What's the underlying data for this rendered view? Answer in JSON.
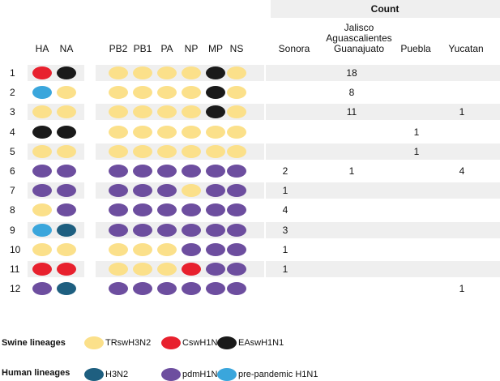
{
  "count_title": "Count",
  "segment_headers": [
    "HA",
    "NA",
    "PB2",
    "PB1",
    "PA",
    "NP",
    "MP",
    "NS"
  ],
  "region_headers": {
    "sonora": "Sonora",
    "jalisco": [
      "Jalisco",
      "Aguascalientes",
      "Guanajuato"
    ],
    "puebla": "Puebla",
    "yucatan": "Yucatan"
  },
  "colors": {
    "TRswH3N2": "#fbe08a",
    "CswH1N1": "#e8212e",
    "EAswH1N1": "#1a1a1a",
    "H3N2": "#1e5f80",
    "pdmH1N1": "#6d4e9f",
    "prepandemic": "#3aa6dc",
    "band": "#efefef"
  },
  "rows": [
    {
      "num": "1",
      "segments": [
        "CswH1N1",
        "EAswH1N1",
        "TRswH3N2",
        "TRswH3N2",
        "TRswH3N2",
        "TRswH3N2",
        "EAswH1N1",
        "TRswH3N2"
      ],
      "counts": [
        "",
        "18",
        "",
        ""
      ]
    },
    {
      "num": "2",
      "segments": [
        "prepandemic",
        "TRswH3N2",
        "TRswH3N2",
        "TRswH3N2",
        "TRswH3N2",
        "TRswH3N2",
        "EAswH1N1",
        "TRswH3N2"
      ],
      "counts": [
        "",
        "8",
        "",
        ""
      ]
    },
    {
      "num": "3",
      "segments": [
        "TRswH3N2",
        "TRswH3N2",
        "TRswH3N2",
        "TRswH3N2",
        "TRswH3N2",
        "TRswH3N2",
        "EAswH1N1",
        "TRswH3N2"
      ],
      "counts": [
        "",
        "11",
        "",
        "1"
      ]
    },
    {
      "num": "4",
      "segments": [
        "EAswH1N1",
        "EAswH1N1",
        "TRswH3N2",
        "TRswH3N2",
        "TRswH3N2",
        "TRswH3N2",
        "TRswH3N2",
        "TRswH3N2"
      ],
      "counts": [
        "",
        "",
        "1",
        ""
      ]
    },
    {
      "num": "5",
      "segments": [
        "TRswH3N2",
        "TRswH3N2",
        "TRswH3N2",
        "TRswH3N2",
        "TRswH3N2",
        "TRswH3N2",
        "TRswH3N2",
        "TRswH3N2"
      ],
      "counts": [
        "",
        "",
        "1",
        ""
      ]
    },
    {
      "num": "6",
      "segments": [
        "pdmH1N1",
        "pdmH1N1",
        "pdmH1N1",
        "pdmH1N1",
        "pdmH1N1",
        "pdmH1N1",
        "pdmH1N1",
        "pdmH1N1"
      ],
      "counts": [
        "2",
        "1",
        "",
        "4"
      ]
    },
    {
      "num": "7",
      "segments": [
        "pdmH1N1",
        "pdmH1N1",
        "pdmH1N1",
        "pdmH1N1",
        "pdmH1N1",
        "TRswH3N2",
        "pdmH1N1",
        "pdmH1N1"
      ],
      "counts": [
        "1",
        "",
        "",
        ""
      ]
    },
    {
      "num": "8",
      "segments": [
        "TRswH3N2",
        "pdmH1N1",
        "pdmH1N1",
        "pdmH1N1",
        "pdmH1N1",
        "pdmH1N1",
        "pdmH1N1",
        "pdmH1N1"
      ],
      "counts": [
        "4",
        "",
        "",
        ""
      ]
    },
    {
      "num": "9",
      "segments": [
        "prepandemic",
        "H3N2",
        "pdmH1N1",
        "pdmH1N1",
        "pdmH1N1",
        "pdmH1N1",
        "pdmH1N1",
        "pdmH1N1"
      ],
      "counts": [
        "3",
        "",
        "",
        ""
      ]
    },
    {
      "num": "10",
      "segments": [
        "TRswH3N2",
        "TRswH3N2",
        "TRswH3N2",
        "TRswH3N2",
        "TRswH3N2",
        "pdmH1N1",
        "pdmH1N1",
        "pdmH1N1"
      ],
      "counts": [
        "1",
        "",
        "",
        ""
      ]
    },
    {
      "num": "11",
      "segments": [
        "CswH1N1",
        "CswH1N1",
        "TRswH3N2",
        "TRswH3N2",
        "TRswH3N2",
        "CswH1N1",
        "pdmH1N1",
        "pdmH1N1"
      ],
      "counts": [
        "1",
        "",
        "",
        ""
      ]
    },
    {
      "num": "12",
      "segments": [
        "pdmH1N1",
        "H3N2",
        "pdmH1N1",
        "pdmH1N1",
        "pdmH1N1",
        "pdmH1N1",
        "pdmH1N1",
        "pdmH1N1"
      ],
      "counts": [
        "",
        "",
        "",
        "1"
      ]
    }
  ],
  "legend": {
    "swine_label": "Swine lineages",
    "human_label": "Human lineages",
    "swine": [
      {
        "key": "TRswH3N2",
        "label": "TRswH3N2"
      },
      {
        "key": "CswH1N1",
        "label": "CswH1N1"
      },
      {
        "key": "EAswH1N1",
        "label": "EAswH1N1"
      }
    ],
    "human": [
      {
        "key": "H3N2",
        "label": "H3N2"
      },
      {
        "key": "pdmH1N1",
        "label": "pdmH1N1"
      },
      {
        "key": "prepandemic",
        "label": "pre-pandemic H1N1"
      }
    ]
  }
}
